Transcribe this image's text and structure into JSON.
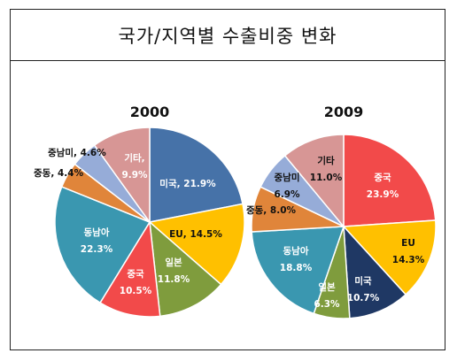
{
  "title": "국가/지역별 수출비중 변화",
  "chart_data": [
    {
      "type": "pie",
      "title": "2000",
      "slices": [
        {
          "name": "미국",
          "value": 21.9,
          "label": "미국, 21.9%",
          "color": "#4672a8"
        },
        {
          "name": "EU",
          "value": 14.5,
          "label": "EU, 14.5%",
          "color": "#ffc000"
        },
        {
          "name": "일본",
          "value": 11.8,
          "label": "일본 11.8%",
          "color": "#7f9c3d"
        },
        {
          "name": "중국",
          "value": 10.5,
          "label": "중국 10.5%",
          "color": "#f24a4a"
        },
        {
          "name": "동남아",
          "value": 22.3,
          "label": "동남아 22.3%",
          "color": "#3a97b0"
        },
        {
          "name": "중동",
          "value": 4.4,
          "label": "중동, 4.4%",
          "color": "#e0853a"
        },
        {
          "name": "중남미",
          "value": 4.6,
          "label": "중남미, 4.6%",
          "color": "#96acd8"
        },
        {
          "name": "기타",
          "value": 9.9,
          "label": "기타, 9.9%",
          "color": "#d79695"
        }
      ]
    },
    {
      "type": "pie",
      "title": "2009",
      "slices": [
        {
          "name": "중국",
          "value": 23.9,
          "label": "중국 23.9%",
          "color": "#f24a4a"
        },
        {
          "name": "EU",
          "value": 14.3,
          "label": "EU 14.3%",
          "color": "#ffc000"
        },
        {
          "name": "미국",
          "value": 10.7,
          "label": "미국 10.7%",
          "color": "#1f3864"
        },
        {
          "name": "일본",
          "value": 6.3,
          "label": "일본 6.3%",
          "color": "#7f9c3d"
        },
        {
          "name": "동남아",
          "value": 18.8,
          "label": "동남아 18.8%",
          "color": "#3a97b0"
        },
        {
          "name": "중동",
          "value": 8.0,
          "label": "중동, 8.0%",
          "color": "#e0853a"
        },
        {
          "name": "중남미",
          "value": 6.9,
          "label": "중남미 6.9%",
          "color": "#96acd8"
        },
        {
          "name": "기타",
          "value": 11.0,
          "label": "기타 11.0%",
          "color": "#d79695"
        }
      ]
    }
  ]
}
